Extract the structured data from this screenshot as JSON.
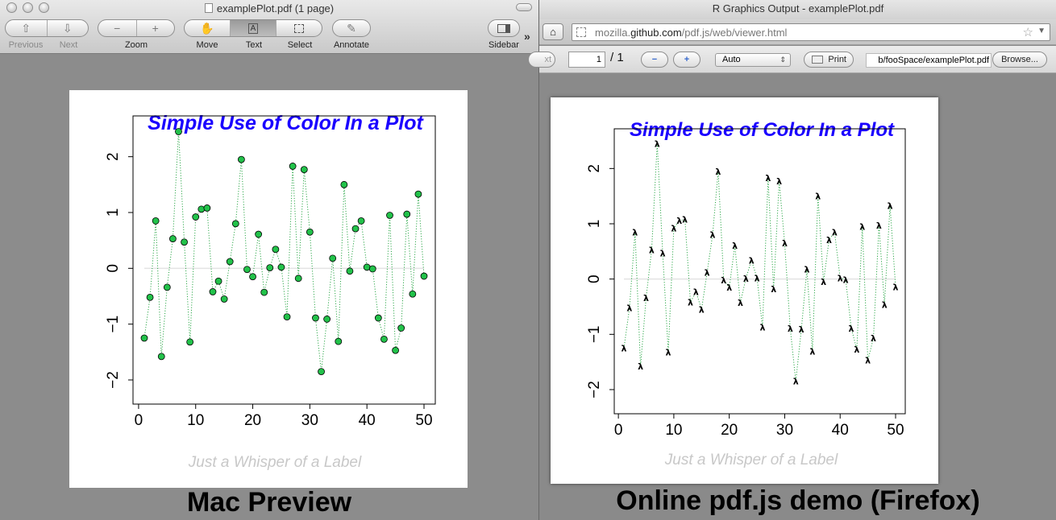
{
  "preview": {
    "window_title": "examplePlot.pdf (1 page)",
    "toolbar": {
      "previous_label": "Previous",
      "next_label": "Next",
      "zoom_label": "Zoom",
      "move_label": "Move",
      "text_label": "Text",
      "select_label": "Select",
      "annotate_label": "Annotate",
      "sidebar_label": "Sidebar"
    },
    "caption": "Mac Preview"
  },
  "firefox": {
    "window_title": "R Graphics Output - examplePlot.pdf",
    "url": {
      "prefix": "mozilla.",
      "domain": "github.com",
      "suffix": "/pdf.js/web/viewer.html"
    },
    "toolbar": {
      "next_label": "xt",
      "page_value": "1",
      "page_total": "/ 1",
      "zoom_value": "Auto",
      "print_label": "Print",
      "file_path": "b/fooSpace/examplePlot.pdf",
      "browse_label": "Browse..."
    },
    "caption": "Online pdf.js demo (Firefox)"
  },
  "colors": {
    "title": "#1a00ff",
    "xlabel": "#c8c8c8",
    "line": "#2ea84a",
    "point_fill": "#22c24a",
    "zero_line": "#e3e3e3"
  },
  "chart_data": {
    "type": "scatter",
    "title": "Simple Use of Color In a Plot",
    "xlabel": "Just a Whisper of a Label",
    "ylabel": "",
    "xlim": [
      1,
      50
    ],
    "ylim": [
      -2,
      2.5
    ],
    "xticks": [
      0,
      10,
      20,
      30,
      40,
      50
    ],
    "yticks": [
      -2,
      -1,
      0,
      1,
      2
    ],
    "ytick_labels": [
      "−2",
      "−1",
      "0",
      "1",
      "2"
    ],
    "zero_line": 0,
    "line_style": "dotted",
    "preview_marker": "circle",
    "pdfjs_marker": "λ",
    "x": [
      1,
      2,
      3,
      4,
      5,
      6,
      7,
      8,
      9,
      10,
      11,
      12,
      13,
      14,
      15,
      16,
      17,
      18,
      19,
      20,
      21,
      22,
      23,
      24,
      25,
      26,
      27,
      28,
      29,
      30,
      31,
      32,
      33,
      34,
      35,
      36,
      37,
      38,
      39,
      40,
      41,
      42,
      43,
      44,
      45,
      46,
      47,
      48,
      49,
      50
    ],
    "y": [
      -1.25,
      -0.52,
      0.85,
      -1.58,
      -0.34,
      0.53,
      2.45,
      0.47,
      -1.32,
      0.92,
      1.06,
      1.08,
      -0.42,
      -0.23,
      -0.55,
      0.12,
      0.8,
      1.95,
      -0.02,
      -0.15,
      0.61,
      -0.43,
      0.01,
      0.34,
      0.02,
      -0.87,
      1.83,
      -0.18,
      1.77,
      0.65,
      -0.89,
      -1.85,
      -0.91,
      0.18,
      -1.31,
      1.5,
      -0.05,
      0.71,
      0.85,
      0.02,
      -0.01,
      -0.89,
      -1.27,
      0.95,
      -1.47,
      -1.07,
      0.97,
      -0.46,
      1.33,
      -0.14
    ]
  }
}
